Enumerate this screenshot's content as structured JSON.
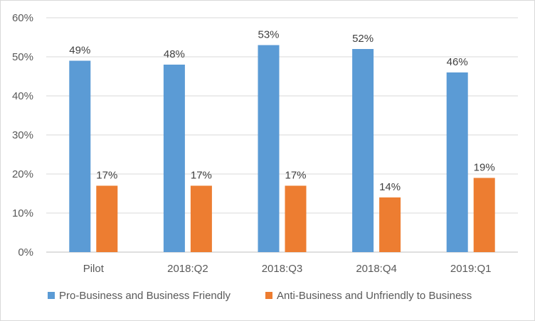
{
  "chart_data": {
    "type": "bar",
    "categories": [
      "Pilot",
      "2018:Q2",
      "2018:Q3",
      "2018:Q4",
      "2019:Q1"
    ],
    "series": [
      {
        "name": "Pro-Business and Business Friendly",
        "values": [
          49,
          48,
          53,
          52,
          46
        ],
        "color": "#5b9bd5"
      },
      {
        "name": "Anti-Business and Unfriendly to Business",
        "values": [
          17,
          17,
          17,
          14,
          19
        ],
        "color": "#ed7d31"
      }
    ],
    "value_format": "percent",
    "ylim": [
      0,
      60
    ],
    "yticks": [
      "0%",
      "10%",
      "20%",
      "30%",
      "40%",
      "50%",
      "60%"
    ],
    "grid": true,
    "legend_position": "bottom"
  }
}
